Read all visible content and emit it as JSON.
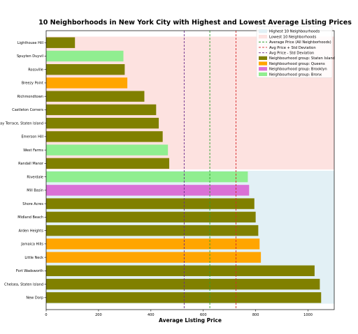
{
  "chart_data": {
    "type": "bar",
    "orientation": "horizontal",
    "title": "10 Neighborhoods in New York City with Highest and Lowest Average Listing Prices",
    "xlabel": "Average Listing Price",
    "ylabel": "",
    "xlim": [
      0,
      1100
    ],
    "xticks": [
      0,
      200,
      400,
      600,
      800,
      1000
    ],
    "grid": false,
    "legend_position": "top-right",
    "categories": [
      "Lighthouse Hill",
      "Spuyten Duyvil",
      "Rossville",
      "Breezy Point",
      "Richmondtown",
      "Castleton Corners",
      "Bay Terrace, Staten Island",
      "Emerson Hill",
      "West Farms",
      "Randall Manor",
      "Riverdale",
      "Mill Basin",
      "Shore Acres",
      "Midland Beach",
      "Arden Heights",
      "Jamaica Hills",
      "Little Neck",
      "Fort Wadsworth",
      "Chelsea, Staten Island",
      "New Dorp"
    ],
    "values": [
      110,
      295,
      300,
      310,
      375,
      420,
      430,
      445,
      465,
      470,
      770,
      775,
      795,
      800,
      810,
      815,
      820,
      1025,
      1045,
      1050
    ],
    "groups": [
      "Staten Island",
      "Bronx",
      "Staten Island",
      "Queens",
      "Staten Island",
      "Staten Island",
      "Staten Island",
      "Staten Island",
      "Bronx",
      "Staten Island",
      "Bronx",
      "Brooklyn",
      "Staten Island",
      "Staten Island",
      "Staten Island",
      "Queens",
      "Queens",
      "Staten Island",
      "Staten Island",
      "Staten Island"
    ],
    "group_colors": {
      "Staten Island": "#808000",
      "Queens": "#ffa500",
      "Brooklyn": "#da70d6",
      "Bronx": "#90ee90"
    },
    "lowest_band_color": "#fde2e0",
    "highest_band_color": "#e2f0f5",
    "reference_lines": [
      {
        "label": "Average Price (All Neighborhoods)",
        "value": 625,
        "color": "#2ca02c"
      },
      {
        "label": "Avg Price + Std Deviation",
        "value": 725,
        "color": "#d62728"
      },
      {
        "label": "Avg Price - Std Deviation",
        "value": 527,
        "color": "#6b2a8a"
      }
    ],
    "legend": [
      {
        "label": "Highest 10 Neighbourhoods",
        "kind": "band",
        "color": "#e2f0f5"
      },
      {
        "label": "Lowest 10 Neighborhoods",
        "kind": "band",
        "color": "#fde2e0"
      },
      {
        "label": "Average Price (All Neighborhoods)",
        "kind": "line",
        "color": "#2ca02c"
      },
      {
        "label": "Avg Price + Std Deviation",
        "kind": "line",
        "color": "#d62728"
      },
      {
        "label": "Avg Price - Std Deviation",
        "kind": "line",
        "color": "#6b2a8a"
      },
      {
        "label": "Neighbourhood group: Staten Island",
        "kind": "patch",
        "color": "#808000"
      },
      {
        "label": "Neighbourhood group: Queens",
        "kind": "patch",
        "color": "#ffa500"
      },
      {
        "label": "Neighbourhood group: Brooklyn",
        "kind": "patch",
        "color": "#da70d6"
      },
      {
        "label": "Neighbourhood group: Bronx",
        "kind": "patch",
        "color": "#90ee90"
      }
    ]
  }
}
